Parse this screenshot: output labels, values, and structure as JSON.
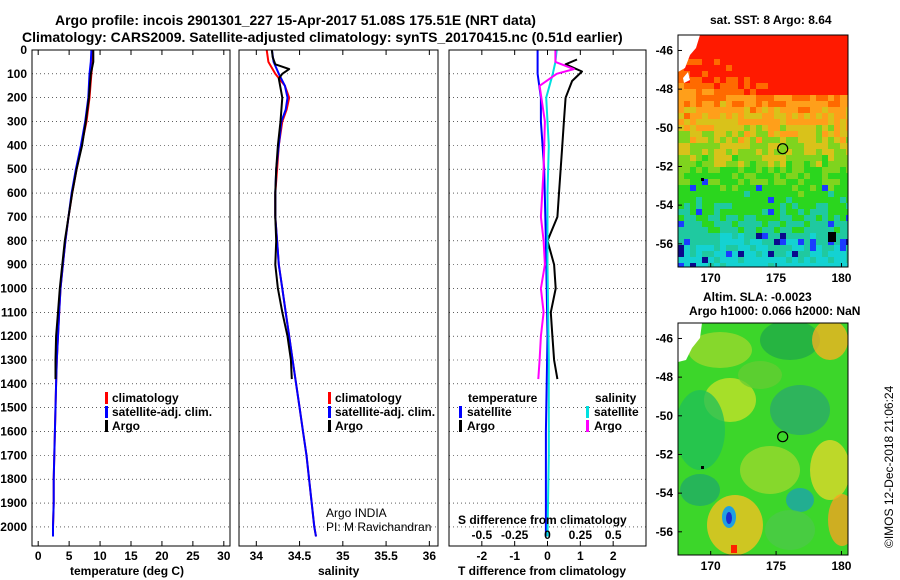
{
  "title": {
    "line1": "Argo profile: incois 2901301_227 15-Apr-2017 51.08S 175.51E (NRT data)",
    "line2": "Climatology: CARS2009. Satellite-adjusted climatology: synTS_20170415.nc (0.51d earlier)"
  },
  "colors": {
    "climatology": "#ff0000",
    "satellite": "#0000ff",
    "argo": "#000000",
    "sat_salinity": "#00e0e0",
    "argo_salinity": "#ff00ff"
  },
  "credits": {
    "line1": "Argo INDIA",
    "line2": "PI: M Ravichandran"
  },
  "stamp": "©IMOS 12-Dec-2018 21:06:24",
  "chart_data": [
    {
      "type": "line",
      "panel": "temperature",
      "xlabel": "temperature (deg C)",
      "ylabel": "",
      "xlim": [
        -1,
        31
      ],
      "ylim": [
        2080,
        0
      ],
      "xticks": [
        0,
        5,
        10,
        15,
        20,
        25,
        30
      ],
      "yticks": [
        0,
        100,
        200,
        300,
        400,
        500,
        600,
        700,
        800,
        900,
        1000,
        1100,
        1200,
        1300,
        1400,
        1500,
        1600,
        1700,
        1800,
        1900,
        2000
      ],
      "legend": [
        "climatology",
        "satellite-adj. clim.",
        "Argo"
      ],
      "series": [
        {
          "name": "climatology",
          "color": "#ff0000",
          "points": [
            [
              8.8,
              0
            ],
            [
              8.8,
              50
            ],
            [
              8.6,
              100
            ],
            [
              8.3,
              200
            ],
            [
              7.8,
              300
            ],
            [
              7.0,
              400
            ],
            [
              6.2,
              500
            ],
            [
              5.5,
              600
            ],
            [
              4.9,
              700
            ],
            [
              4.4,
              800
            ],
            [
              4.0,
              900
            ],
            [
              3.6,
              1000
            ],
            [
              3.4,
              1100
            ],
            [
              3.2,
              1200
            ],
            [
              3.0,
              1300
            ],
            [
              2.9,
              1400
            ],
            [
              2.8,
              1500
            ],
            [
              2.7,
              1600
            ],
            [
              2.6,
              1700
            ],
            [
              2.5,
              1800
            ],
            [
              2.5,
              1900
            ],
            [
              2.4,
              2000
            ],
            [
              2.4,
              2040
            ]
          ]
        },
        {
          "name": "satellite-adj. clim.",
          "color": "#0000ff",
          "points": [
            [
              8.6,
              0
            ],
            [
              8.5,
              50
            ],
            [
              8.3,
              100
            ],
            [
              8.1,
              200
            ],
            [
              7.6,
              300
            ],
            [
              6.9,
              400
            ],
            [
              6.1,
              500
            ],
            [
              5.4,
              600
            ],
            [
              4.9,
              700
            ],
            [
              4.4,
              800
            ],
            [
              4.0,
              900
            ],
            [
              3.6,
              1000
            ],
            [
              3.4,
              1100
            ],
            [
              3.2,
              1200
            ],
            [
              3.0,
              1300
            ],
            [
              2.9,
              1400
            ],
            [
              2.8,
              1500
            ],
            [
              2.7,
              1600
            ],
            [
              2.6,
              1700
            ],
            [
              2.5,
              1800
            ],
            [
              2.5,
              1900
            ],
            [
              2.4,
              2000
            ],
            [
              2.4,
              2040
            ]
          ]
        },
        {
          "name": "Argo",
          "color": "#000000",
          "points": [
            [
              8.9,
              0
            ],
            [
              8.9,
              50
            ],
            [
              8.5,
              100
            ],
            [
              8.2,
              200
            ],
            [
              7.7,
              300
            ],
            [
              7.1,
              400
            ],
            [
              6.2,
              500
            ],
            [
              5.5,
              600
            ],
            [
              4.9,
              700
            ],
            [
              4.3,
              800
            ],
            [
              3.9,
              900
            ],
            [
              3.5,
              1000
            ],
            [
              3.2,
              1100
            ],
            [
              2.9,
              1200
            ],
            [
              2.8,
              1300
            ],
            [
              2.8,
              1380
            ]
          ]
        }
      ]
    },
    {
      "type": "line",
      "panel": "salinity",
      "xlabel": "salinity",
      "ylabel": "",
      "xlim": [
        33.8,
        36.1
      ],
      "ylim": [
        2080,
        0
      ],
      "xticks": [
        34,
        34.5,
        35,
        35.5,
        36
      ],
      "legend": [
        "climatology",
        "satellite-adj. clim.",
        "Argo"
      ],
      "series": [
        {
          "name": "climatology",
          "color": "#ff0000",
          "points": [
            [
              34.12,
              0
            ],
            [
              34.14,
              50
            ],
            [
              34.22,
              100
            ],
            [
              34.33,
              150
            ],
            [
              34.38,
              200
            ],
            [
              34.35,
              250
            ],
            [
              34.3,
              300
            ],
            [
              34.26,
              400
            ],
            [
              34.24,
              500
            ],
            [
              34.22,
              600
            ],
            [
              34.22,
              700
            ],
            [
              34.24,
              800
            ],
            [
              34.26,
              900
            ],
            [
              34.3,
              1000
            ],
            [
              34.34,
              1100
            ],
            [
              34.38,
              1200
            ],
            [
              34.42,
              1300
            ],
            [
              34.46,
              1400
            ],
            [
              34.5,
              1500
            ],
            [
              34.54,
              1600
            ],
            [
              34.58,
              1700
            ],
            [
              34.61,
              1800
            ],
            [
              34.64,
              1900
            ],
            [
              34.67,
              2000
            ],
            [
              34.69,
              2040
            ]
          ]
        },
        {
          "name": "satellite-adj. clim.",
          "color": "#0000ff",
          "points": [
            [
              34.18,
              0
            ],
            [
              34.2,
              50
            ],
            [
              34.26,
              100
            ],
            [
              34.33,
              150
            ],
            [
              34.36,
              200
            ],
            [
              34.34,
              250
            ],
            [
              34.29,
              300
            ],
            [
              34.26,
              400
            ],
            [
              34.23,
              500
            ],
            [
              34.22,
              600
            ],
            [
              34.22,
              700
            ],
            [
              34.24,
              800
            ],
            [
              34.26,
              900
            ],
            [
              34.3,
              1000
            ],
            [
              34.34,
              1100
            ],
            [
              34.38,
              1200
            ],
            [
              34.42,
              1300
            ],
            [
              34.46,
              1400
            ],
            [
              34.5,
              1500
            ],
            [
              34.54,
              1600
            ],
            [
              34.58,
              1700
            ],
            [
              34.61,
              1800
            ],
            [
              34.64,
              1900
            ],
            [
              34.67,
              2000
            ],
            [
              34.69,
              2040
            ]
          ]
        },
        {
          "name": "Argo",
          "color": "#000000",
          "points": [
            [
              34.18,
              0
            ],
            [
              34.19,
              30
            ],
            [
              34.22,
              60
            ],
            [
              34.38,
              80
            ],
            [
              34.3,
              100
            ],
            [
              34.26,
              120
            ],
            [
              34.3,
              200
            ],
            [
              34.28,
              300
            ],
            [
              34.25,
              400
            ],
            [
              34.23,
              500
            ],
            [
              34.22,
              600
            ],
            [
              34.22,
              700
            ],
            [
              34.23,
              800
            ],
            [
              34.22,
              900
            ],
            [
              34.25,
              1000
            ],
            [
              34.3,
              1100
            ],
            [
              34.36,
              1200
            ],
            [
              34.4,
              1300
            ],
            [
              34.41,
              1380
            ]
          ]
        }
      ]
    },
    {
      "type": "line",
      "panel": "differences",
      "xlabel": "T difference from climatology",
      "xlabel2": "S difference from climatology",
      "xlim": [
        -3,
        3
      ],
      "xlim2": [
        -0.75,
        0.75
      ],
      "ylim": [
        2080,
        0
      ],
      "xticks": [
        -2,
        -1,
        0,
        1,
        2
      ],
      "xticks2": [
        "-0.5",
        "-0.25",
        "0",
        "0.25",
        "0.5"
      ],
      "legend_headers": [
        "temperature",
        "salinity"
      ],
      "legend": [
        "satellite",
        "Argo",
        "satellite",
        "Argo"
      ],
      "series": [
        {
          "name": "satellite",
          "quantity": "temperature",
          "color": "#0000ff",
          "points": [
            [
              -0.3,
              0
            ],
            [
              -0.3,
              100
            ],
            [
              -0.2,
              200
            ],
            [
              -0.2,
              300
            ],
            [
              -0.1,
              500
            ],
            [
              -0.05,
              800
            ],
            [
              0,
              1200
            ],
            [
              -0.05,
              1600
            ],
            [
              -0.05,
              2040
            ]
          ]
        },
        {
          "name": "Argo",
          "quantity": "temperature",
          "color": "#000000",
          "points": [
            [
              0.9,
              40
            ],
            [
              0.55,
              60
            ],
            [
              1.05,
              90
            ],
            [
              0.75,
              130
            ],
            [
              0.55,
              200
            ],
            [
              0.5,
              300
            ],
            [
              0.45,
              400
            ],
            [
              0.35,
              600
            ],
            [
              0.3,
              700
            ],
            [
              0.0,
              800
            ],
            [
              0.2,
              900
            ],
            [
              0.25,
              1000
            ],
            [
              0.1,
              1100
            ],
            [
              0.15,
              1200
            ],
            [
              0.2,
              1300
            ],
            [
              0.3,
              1380
            ]
          ]
        },
        {
          "name": "satellite",
          "quantity": "salinity",
          "color": "#00e0e0",
          "points": [
            [
              0.07,
              0
            ],
            [
              0.06,
              50
            ],
            [
              0.04,
              100
            ],
            [
              -0.01,
              200
            ],
            [
              0.0,
              300
            ],
            [
              0.01,
              400
            ],
            [
              0.0,
              600
            ],
            [
              0.0,
              900
            ],
            [
              0.01,
              1300
            ],
            [
              0.01,
              1700
            ],
            [
              0.0,
              2040
            ]
          ]
        },
        {
          "name": "Argo",
          "quantity": "salinity",
          "color": "#ff00ff",
          "points": [
            [
              0.06,
              0
            ],
            [
              0.06,
              50
            ],
            [
              0.2,
              80
            ],
            [
              0.07,
              100
            ],
            [
              -0.06,
              150
            ],
            [
              -0.02,
              300
            ],
            [
              -0.03,
              500
            ],
            [
              -0.05,
              700
            ],
            [
              -0.03,
              800
            ],
            [
              -0.02,
              900
            ],
            [
              -0.05,
              1000
            ],
            [
              -0.03,
              1100
            ],
            [
              -0.05,
              1200
            ],
            [
              -0.06,
              1300
            ],
            [
              -0.07,
              1380
            ]
          ]
        }
      ]
    },
    {
      "type": "heatmap",
      "panel": "map-sst",
      "title": "sat. SST: 8 Argo: 8.64",
      "xlim": [
        167.5,
        180.5
      ],
      "ylim": [
        -57.2,
        -45.2
      ],
      "xticks": [
        170,
        175,
        180
      ],
      "yticks": [
        -46,
        -48,
        -50,
        -52,
        -54,
        -56
      ],
      "argo_position": [
        175.51,
        -51.08
      ]
    },
    {
      "type": "heatmap",
      "panel": "map-sla",
      "title": "Altim. SLA: -0.0023",
      "subtitle": "Argo h1000: 0.066 h2000: NaN",
      "xlim": [
        167.5,
        180.5
      ],
      "ylim": [
        -57.2,
        -45.2
      ],
      "xticks": [
        170,
        175,
        180
      ],
      "yticks": [
        -46,
        -48,
        -50,
        -52,
        -54,
        -56
      ],
      "argo_position": [
        175.51,
        -51.08
      ]
    }
  ]
}
